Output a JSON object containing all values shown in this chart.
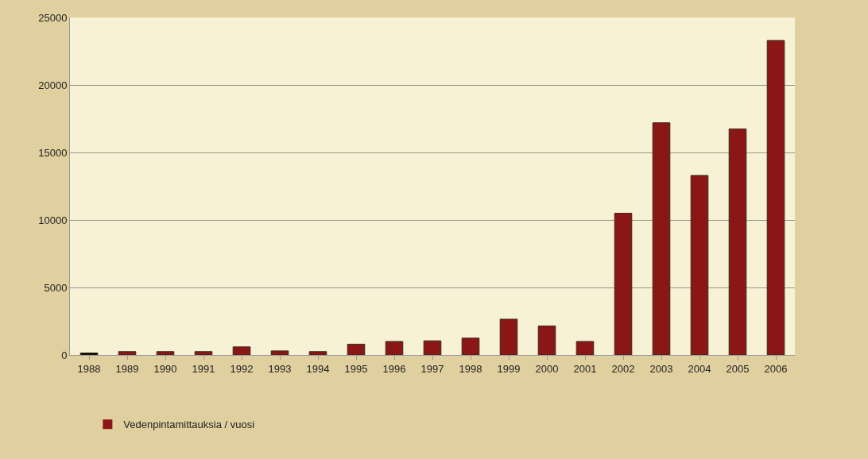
{
  "chart_data": {
    "type": "bar",
    "categories": [
      "1988",
      "1989",
      "1990",
      "1991",
      "1992",
      "1993",
      "1994",
      "1995",
      "1996",
      "1997",
      "1998",
      "1999",
      "2000",
      "2001",
      "2002",
      "2003",
      "2004",
      "2005",
      "2006"
    ],
    "series": [
      {
        "name": "Vedenpintamittauksia / vuosi",
        "color": "#8b1616",
        "colors": [
          "#000000",
          "#8b1616",
          "#8b1616",
          "#8b1616",
          "#8b1616",
          "#8b1616",
          "#8b1616",
          "#8b1616",
          "#8b1616",
          "#8b1616",
          "#8b1616",
          "#8b1616",
          "#8b1616",
          "#8b1616",
          "#8b1616",
          "#8b1616",
          "#8b1616",
          "#8b1616",
          "#8b1616"
        ],
        "values": [
          150,
          250,
          250,
          250,
          600,
          300,
          250,
          800,
          1000,
          1050,
          1250,
          2650,
          2150,
          1000,
          10500,
          17200,
          13300,
          16750,
          23300
        ]
      }
    ],
    "ylim": [
      0,
      25000
    ],
    "yticks": [
      0,
      5000,
      10000,
      15000,
      20000,
      25000
    ],
    "grid": "y",
    "legend": "bottom left"
  }
}
